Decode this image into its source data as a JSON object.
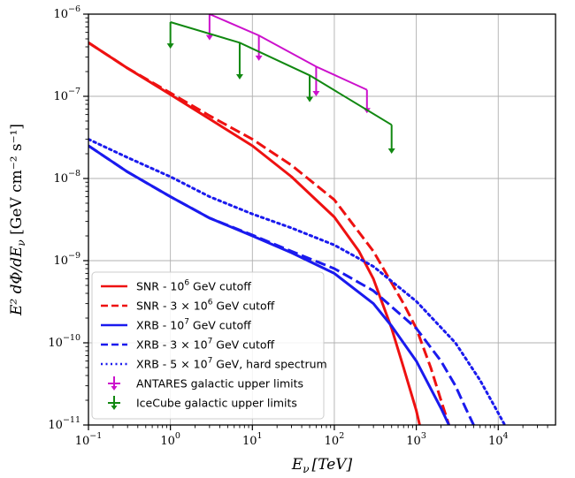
{
  "chart_data": {
    "type": "line",
    "x_scale": "log",
    "y_scale": "log",
    "xlim": [
      0.1,
      50000
    ],
    "ylim": [
      1e-11,
      1e-06
    ],
    "grid": true,
    "legend_position": "bottom-left",
    "xlabel": {
      "main": "E",
      "sub": "ν",
      "unit": "[TeV]"
    },
    "ylabel": {
      "text": "E² dΦ/dE",
      "sub": "ν",
      "unit": " [GeV cm⁻² s⁻¹]"
    },
    "x_ticks": [
      {
        "value": 0.1,
        "base": "10",
        "exp": "−1"
      },
      {
        "value": 1,
        "base": "10",
        "exp": "0"
      },
      {
        "value": 10,
        "base": "10",
        "exp": "1"
      },
      {
        "value": 100,
        "base": "10",
        "exp": "2"
      },
      {
        "value": 1000,
        "base": "10",
        "exp": "3"
      },
      {
        "value": 10000,
        "base": "10",
        "exp": "4"
      }
    ],
    "y_ticks": [
      {
        "value": 1e-11,
        "base": "10",
        "exp": "−11"
      },
      {
        "value": 1e-10,
        "base": "10",
        "exp": "−10"
      },
      {
        "value": 1e-09,
        "base": "10",
        "exp": "−9"
      },
      {
        "value": 1e-08,
        "base": "10",
        "exp": "−8"
      },
      {
        "value": 1e-07,
        "base": "10",
        "exp": "−7"
      },
      {
        "value": 1e-06,
        "base": "10",
        "exp": "−6"
      }
    ],
    "series": [
      {
        "name": "SNR - 10^6 GeV cutoff",
        "label_pre": "SNR - 10",
        "label_sup": "6",
        "label_post": " GeV cutoff",
        "color": "#ee1111",
        "dash": "solid",
        "x": [
          0.1,
          0.3,
          1,
          3,
          10,
          30,
          100,
          200,
          300,
          500,
          700,
          1000,
          1100
        ],
        "y": [
          4.5e-07,
          2.2e-07,
          1.05e-07,
          5.3e-08,
          2.5e-08,
          1.05e-08,
          3.4e-09,
          1.3e-09,
          6e-10,
          1.5e-10,
          5e-11,
          1.5e-11,
          1e-11
        ]
      },
      {
        "name": "SNR - 3×10^6 GeV cutoff",
        "label_pre": "SNR - 3 × 10",
        "label_sup": "6",
        "label_post": " GeV cutoff",
        "color": "#ee1111",
        "dash": "dashed",
        "x": [
          0.1,
          0.3,
          1,
          3,
          10,
          30,
          100,
          300,
          700,
          1000,
          1500,
          2000,
          2500
        ],
        "y": [
          4.5e-07,
          2.2e-07,
          1.1e-07,
          5.8e-08,
          3e-08,
          1.45e-08,
          5.5e-09,
          1.3e-09,
          3e-10,
          1.5e-10,
          5e-11,
          2e-11,
          1e-11
        ]
      },
      {
        "name": "XRB - 10^7 GeV cutoff",
        "label_pre": "XRB - 10",
        "label_sup": "7",
        "label_post": " GeV cutoff",
        "color": "#1a1aee",
        "dash": "solid",
        "x": [
          0.1,
          0.3,
          1,
          3,
          10,
          30,
          100,
          300,
          500,
          1000,
          2000,
          2500
        ],
        "y": [
          2.5e-08,
          1.2e-08,
          6e-09,
          3.3e-09,
          2e-09,
          1.25e-09,
          7e-10,
          3e-10,
          1.6e-10,
          6e-11,
          1.6e-11,
          1e-11
        ]
      },
      {
        "name": "XRB - 3×10^7 GeV cutoff",
        "label_pre": "XRB - 3 × 10",
        "label_sup": "7",
        "label_post": " GeV cutoff",
        "color": "#1a1aee",
        "dash": "dashed",
        "x": [
          0.1,
          0.3,
          1,
          3,
          10,
          30,
          100,
          300,
          1000,
          2000,
          3000,
          4000,
          5000
        ],
        "y": [
          2.5e-08,
          1.2e-08,
          6e-09,
          3.3e-09,
          2.05e-09,
          1.3e-09,
          8e-10,
          4.3e-10,
          1.5e-10,
          6e-11,
          3e-11,
          1.6e-11,
          1e-11
        ]
      },
      {
        "name": "XRB - 5×10^7 GeV, hard spectrum",
        "label_pre": "XRB - 5 × 10",
        "label_sup": "7",
        "label_post": " GeV, hard spectrum",
        "color": "#1a1aee",
        "dash": "dotted",
        "x": [
          0.1,
          0.3,
          1,
          3,
          10,
          30,
          100,
          300,
          1000,
          3000,
          6000,
          10000,
          12000
        ],
        "y": [
          3e-08,
          1.8e-08,
          1.05e-08,
          6e-09,
          3.7e-09,
          2.5e-09,
          1.55e-09,
          8.5e-10,
          3.2e-10,
          1e-10,
          3.5e-11,
          1.4e-11,
          1e-11
        ]
      }
    ],
    "upper_limits": [
      {
        "name": "ANTARES galactic upper limits",
        "color": "#cc11cc",
        "points": [
          {
            "x": 3,
            "y": 1e-06,
            "y_end": 4.8e-07
          },
          {
            "x": 12,
            "y": 5.5e-07,
            "y_end": 2.7e-07
          },
          {
            "x": 60,
            "y": 2.3e-07,
            "y_end": 1e-07
          },
          {
            "x": 250,
            "y": 1.2e-07,
            "y_end": 6.2e-08
          }
        ]
      },
      {
        "name": "IceCube galactic upper limits",
        "color": "#118811",
        "points": [
          {
            "x": 1,
            "y": 8e-07,
            "y_end": 3.8e-07
          },
          {
            "x": 7,
            "y": 4.5e-07,
            "y_end": 1.6e-07
          },
          {
            "x": 50,
            "y": 1.8e-07,
            "y_end": 8.5e-08
          },
          {
            "x": 500,
            "y": 4.5e-08,
            "y_end": 2e-08
          }
        ]
      }
    ]
  }
}
